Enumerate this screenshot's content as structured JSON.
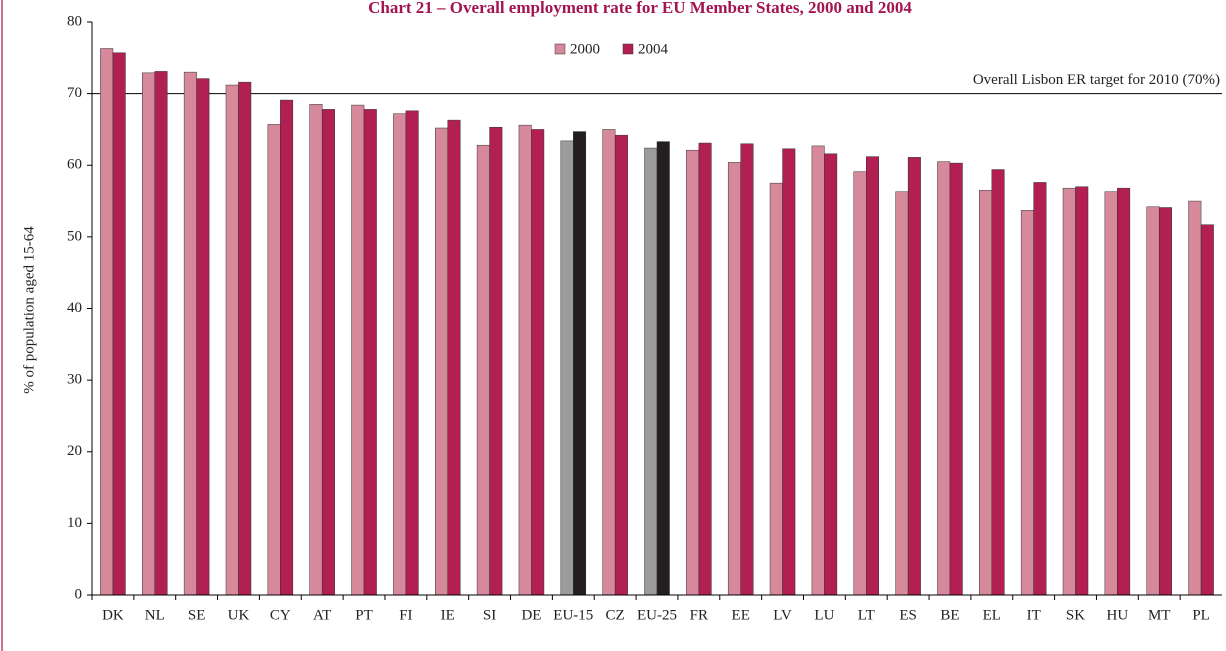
{
  "chart_data": {
    "type": "bar",
    "title": "Chart 21 – Overall employment rate for EU Member States, 2000 and 2004",
    "y_label": "% of population aged 15-64",
    "categories": [
      "DK",
      "NL",
      "SE",
      "UK",
      "CY",
      "AT",
      "PT",
      "FI",
      "IE",
      "SI",
      "DE",
      "EU-15",
      "CZ",
      "EU-25",
      "FR",
      "EE",
      "LV",
      "LU",
      "LT",
      "ES",
      "BE",
      "EL",
      "IT",
      "SK",
      "HU",
      "MT",
      "PL"
    ],
    "series": [
      {
        "name": "2000",
        "color": "#d6899a",
        "colors": [
          "#d6899a",
          "#d6899a",
          "#d6899a",
          "#d6899a",
          "#d6899a",
          "#d6899a",
          "#d6899a",
          "#d6899a",
          "#d6899a",
          "#d6899a",
          "#d6899a",
          "#9b9b9d",
          "#d6899a",
          "#9b9b9d",
          "#d6899a",
          "#d6899a",
          "#d6899a",
          "#d6899a",
          "#d6899a",
          "#d6899a",
          "#d6899a",
          "#d6899a",
          "#d6899a",
          "#d6899a",
          "#d6899a",
          "#d6899a",
          "#d6899a"
        ],
        "values": [
          76.3,
          72.9,
          73.0,
          71.2,
          65.7,
          68.5,
          68.4,
          67.2,
          65.2,
          62.8,
          65.6,
          63.4,
          65.0,
          62.4,
          62.1,
          60.4,
          57.5,
          62.7,
          59.1,
          56.3,
          60.5,
          56.5,
          53.7,
          56.8,
          56.3,
          54.2,
          55.0
        ]
      },
      {
        "name": "2004",
        "color": "#b21f52",
        "colors": [
          "#b21f52",
          "#b21f52",
          "#b21f52",
          "#b21f52",
          "#b21f52",
          "#b21f52",
          "#b21f52",
          "#b21f52",
          "#b21f52",
          "#b21f52",
          "#b21f52",
          "#231f20",
          "#b21f52",
          "#231f20",
          "#b21f52",
          "#b21f52",
          "#b21f52",
          "#b21f52",
          "#b21f52",
          "#b21f52",
          "#b21f52",
          "#b21f52",
          "#b21f52",
          "#b21f52",
          "#b21f52",
          "#b21f52",
          "#b21f52"
        ],
        "values": [
          75.7,
          73.1,
          72.1,
          71.6,
          69.1,
          67.8,
          67.8,
          67.6,
          66.3,
          65.3,
          65.0,
          64.7,
          64.2,
          63.3,
          63.1,
          63.0,
          62.3,
          61.6,
          61.2,
          61.1,
          60.3,
          59.4,
          57.6,
          57.0,
          56.8,
          54.1,
          51.7
        ]
      }
    ],
    "target_line": {
      "value": 70,
      "label": "Overall Lisbon ER target for 2010 (70%)"
    },
    "ylim": [
      0,
      80
    ],
    "yticks": [
      0,
      10,
      20,
      30,
      40,
      50,
      60,
      70,
      80
    ]
  }
}
